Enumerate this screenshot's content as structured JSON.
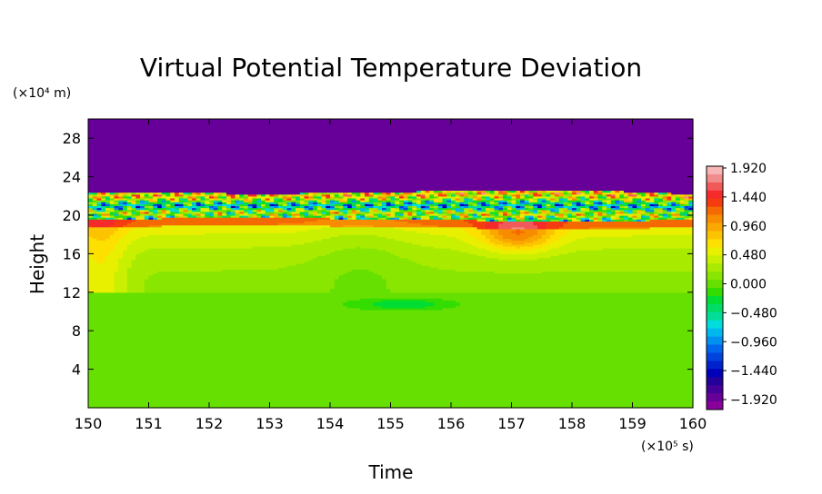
{
  "chart_data": {
    "type": "heatmap",
    "title": "Virtual Potential Temperature Deviation",
    "xlabel": "Time",
    "ylabel": "Height",
    "x_unit": "(×10⁵ s)",
    "y_unit": "(×10⁴ m)",
    "xlim": [
      150,
      160
    ],
    "ylim": [
      0,
      30
    ],
    "x_ticks": [
      "150",
      "151",
      "152",
      "153",
      "154",
      "155",
      "156",
      "157",
      "158",
      "159",
      "160"
    ],
    "y_ticks": [
      "4",
      "8",
      "12",
      "16",
      "20",
      "24",
      "28"
    ],
    "colorbar": {
      "range": [
        -2.16,
        2.16
      ],
      "labels": [
        "1.920",
        "1.440",
        "0.960",
        "0.480",
        "0.000",
        "−0.480",
        "−0.960",
        "−1.440",
        "−1.920"
      ],
      "colors": [
        "#f7b5b5",
        "#f08c8c",
        "#f25a5a",
        "#f52a2a",
        "#f53c10",
        "#f56a00",
        "#f78c00",
        "#faa800",
        "#fcc400",
        "#fde000",
        "#e8f000",
        "#c8f000",
        "#a8eb00",
        "#88e600",
        "#66e000",
        "#33dd00",
        "#00dd33",
        "#00dd66",
        "#00dd99",
        "#00dddd",
        "#00b8f0",
        "#0090f0",
        "#0066ee",
        "#0044dd",
        "#0022cc",
        "#0000bb",
        "#220099",
        "#440099",
        "#660099",
        "#880099"
      ]
    },
    "field_description": {
      "upper_region": {
        "height_range": [
          22,
          30
        ],
        "value": -2.0
      },
      "oscillating_band": {
        "height_range": [
          19.5,
          22.5
        ],
        "value_range": [
          -2.0,
          2.0
        ]
      },
      "warm_layer": {
        "height_range": [
          12,
          19.5
        ],
        "value_range": [
          0.2,
          1.2
        ]
      },
      "lower_region": {
        "height_range": [
          0,
          11.5
        ],
        "value": 0.0
      }
    }
  }
}
